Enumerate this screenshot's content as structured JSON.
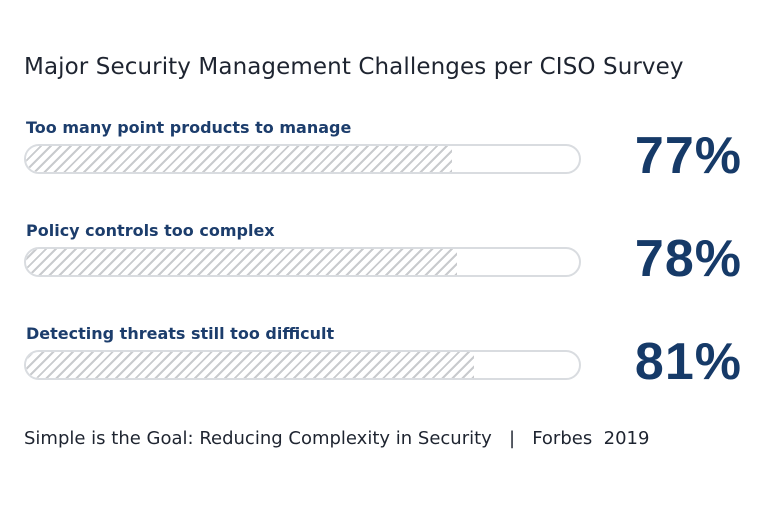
{
  "chart_data": {
    "type": "bar",
    "title": "Major Security Management Challenges per CISO Survey",
    "categories": [
      "Too many point products to manage",
      "Policy controls too complex",
      "Detecting threats still too difficult"
    ],
    "values": [
      77,
      78,
      81
    ],
    "value_labels": [
      "77%",
      "78%",
      "81%"
    ],
    "unit": "%",
    "ylim": [
      0,
      100
    ],
    "xlabel": "",
    "ylabel": ""
  },
  "source": "Simple is the Goal: Reducing Complexity in Security   |   Forbes  2019",
  "colors": {
    "label_blue": "#1c3d6c",
    "percent_blue": "#163a68",
    "stripe_gray": "#c9cbce",
    "track_border": "#d9dce0"
  }
}
